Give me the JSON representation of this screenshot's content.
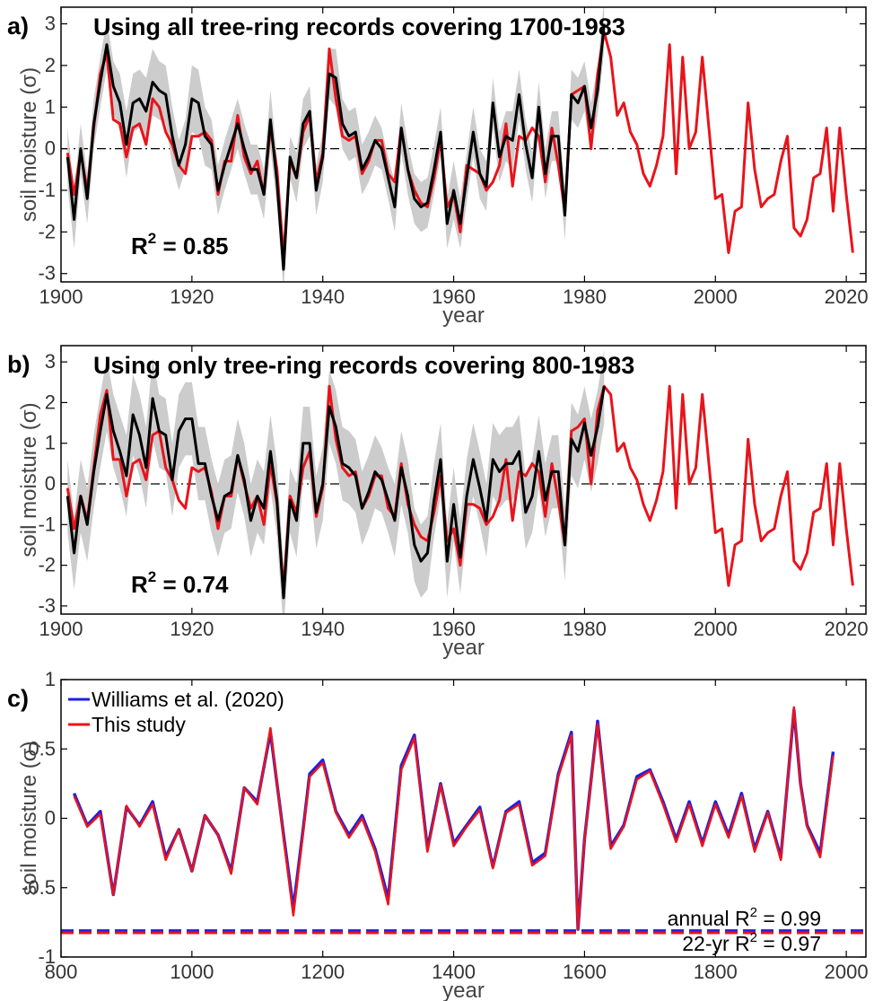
{
  "chart_data": [
    {
      "panel": "a)",
      "type": "line",
      "title": "Using all tree-ring records covering 1700-1983",
      "xlabel": "year",
      "ylabel": "soil moisture (σ)",
      "xlim": [
        1900,
        2023
      ],
      "ylim": [
        -3.2,
        3.4
      ],
      "xticks": [
        1900,
        1920,
        1940,
        1960,
        1980,
        2000,
        2020
      ],
      "yticks": [
        -3,
        -2,
        -1,
        0,
        1,
        2,
        3
      ],
      "zero_line": "dash-dot",
      "grid": false,
      "stat": {
        "label": "R",
        "sup": "2",
        "value": " = 0.85"
      },
      "observed": {
        "color": "#e8141b",
        "x_start": 1901,
        "values": [
          -0.1,
          -1.1,
          -0.1,
          -1.0,
          0.5,
          1.8,
          2.3,
          0.7,
          0.6,
          -0.2,
          0.5,
          0.6,
          0.1,
          1.2,
          1.0,
          0.4,
          0.1,
          -0.4,
          -0.6,
          0.3,
          0.3,
          0.4,
          0.2,
          -1.1,
          -0.3,
          -0.3,
          0.8,
          -0.2,
          -0.6,
          -0.3,
          -1.1,
          0.5,
          -0.5,
          -2.6,
          -0.3,
          -0.7,
          0.4,
          0.8,
          -0.8,
          -0.1,
          2.4,
          1.2,
          0.3,
          0.2,
          0.3,
          -0.6,
          -0.3,
          0.2,
          0.2,
          -0.6,
          -0.8,
          0.5,
          -0.5,
          -1.0,
          -1.3,
          -1.4,
          -0.7,
          0.2,
          -1.4,
          -1.1,
          -2.0,
          -0.4,
          -0.5,
          -0.6,
          -1.0,
          -0.8,
          -0.4,
          0.6,
          -0.9,
          0.3,
          0.2,
          0.5,
          0.3,
          -0.8,
          0.5,
          -0.4,
          -1.5,
          1.3,
          1.4,
          1.5,
          0.0,
          1.8,
          2.8,
          2.2,
          0.8,
          1.1,
          0.4,
          0.1,
          -0.6,
          -0.9,
          -0.4,
          0.3,
          2.5,
          -0.6,
          2.2,
          0.0,
          0.4,
          2.2,
          0.5,
          -1.2,
          -1.1,
          -2.5,
          -1.5,
          -1.4,
          1.1,
          -0.5,
          -1.4,
          -1.2,
          -1.1,
          -0.3,
          0.3,
          -1.9,
          -2.1,
          -1.7,
          -0.7,
          -0.6,
          0.5,
          -1.5,
          0.5,
          -1.1,
          -2.5
        ]
      },
      "reconstruction": {
        "color": "#000000",
        "x_start": 1901,
        "values": [
          -0.2,
          -1.7,
          0.0,
          -1.2,
          0.6,
          1.6,
          2.5,
          1.5,
          1.1,
          0.1,
          1.1,
          1.2,
          0.9,
          1.6,
          1.4,
          1.3,
          0.3,
          -0.4,
          0.1,
          1.2,
          1.1,
          0.3,
          0.1,
          -1.0,
          -0.4,
          0.1,
          0.6,
          0.0,
          -0.5,
          -0.5,
          -1.1,
          0.7,
          -0.8,
          -2.9,
          -0.2,
          -0.7,
          0.6,
          0.9,
          -1.0,
          -0.2,
          1.8,
          1.7,
          0.6,
          0.3,
          0.4,
          -0.5,
          -0.2,
          0.2,
          0.0,
          -0.7,
          -1.4,
          0.5,
          -0.5,
          -1.2,
          -1.4,
          -1.3,
          -0.5,
          0.4,
          -1.8,
          -1.0,
          -1.8,
          -0.7,
          0.4,
          -0.6,
          -0.9,
          1.1,
          -0.2,
          0.3,
          0.2,
          1.3,
          0.1,
          -0.7,
          1.0,
          -0.6,
          0.3,
          0.3,
          -1.6,
          1.3,
          1.1,
          1.5,
          0.5,
          1.4,
          3.0
        ],
        "band": [
          0.7,
          0.7,
          0.6,
          0.6,
          0.6,
          0.6,
          0.6,
          0.6,
          0.7,
          0.8,
          0.7,
          0.7,
          0.8,
          0.8,
          0.7,
          0.7,
          0.7,
          0.6,
          0.6,
          0.8,
          0.8,
          0.7,
          0.6,
          0.6,
          0.6,
          0.6,
          0.6,
          0.6,
          0.6,
          0.6,
          0.6,
          0.7,
          0.6,
          0.5,
          0.5,
          0.6,
          0.6,
          0.6,
          0.6,
          0.6,
          0.6,
          0.7,
          0.6,
          0.6,
          0.6,
          0.6,
          0.6,
          0.6,
          0.5,
          0.5,
          0.6,
          0.6,
          0.6,
          0.6,
          0.6,
          0.6,
          0.6,
          0.6,
          0.6,
          0.7,
          0.6,
          0.6,
          0.6,
          0.6,
          0.6,
          0.6,
          0.6,
          0.6,
          0.7,
          0.6,
          0.6,
          0.6,
          0.6,
          0.6,
          0.6,
          0.6,
          0.6,
          0.6,
          0.6,
          0.6,
          0.6,
          0.6,
          0.6
        ]
      }
    },
    {
      "panel": "b)",
      "type": "line",
      "title": "Using only tree-ring records covering 800-1983",
      "xlabel": "year",
      "ylabel": "soil moisture (σ)",
      "xlim": [
        1900,
        2023
      ],
      "ylim": [
        -3.2,
        3.4
      ],
      "xticks": [
        1900,
        1920,
        1940,
        1960,
        1980,
        2000,
        2020
      ],
      "yticks": [
        -3,
        -2,
        -1,
        0,
        1,
        2,
        3
      ],
      "zero_line": "dash-dot",
      "grid": false,
      "stat": {
        "label": "R",
        "sup": "2",
        "value": " = 0.74"
      },
      "observed": {
        "color": "#e8141b",
        "x_start": 1901,
        "values": [
          -0.1,
          -1.1,
          -0.3,
          -0.9,
          0.4,
          1.7,
          2.3,
          0.6,
          0.6,
          -0.3,
          0.5,
          0.6,
          0.1,
          1.2,
          1.3,
          0.4,
          0.1,
          -0.4,
          -0.6,
          0.4,
          0.3,
          0.4,
          -0.2,
          -1.1,
          -0.3,
          -0.3,
          0.7,
          0.0,
          -0.6,
          -0.3,
          -1.0,
          0.5,
          -0.5,
          -2.6,
          -0.3,
          -0.7,
          0.4,
          0.8,
          -0.8,
          -0.1,
          2.4,
          1.1,
          0.4,
          0.2,
          0.3,
          -0.6,
          -0.3,
          0.2,
          0.2,
          -0.6,
          -0.8,
          0.5,
          -0.5,
          -1.0,
          -1.3,
          -1.4,
          -0.7,
          0.2,
          -1.4,
          -1.1,
          -2.0,
          -0.5,
          -0.5,
          -0.6,
          -1.0,
          -0.8,
          -0.4,
          0.6,
          -0.9,
          0.3,
          0.2,
          0.5,
          0.3,
          -0.8,
          0.5,
          -0.4,
          -1.5,
          1.3,
          1.4,
          1.6,
          0.0,
          1.8,
          2.4,
          2.2,
          0.8,
          1.0,
          0.4,
          0.1,
          -0.5,
          -0.9,
          -0.4,
          0.3,
          2.4,
          -0.6,
          2.2,
          0.0,
          0.4,
          2.2,
          0.5,
          -1.2,
          -1.1,
          -2.5,
          -1.5,
          -1.4,
          1.1,
          -0.5,
          -1.4,
          -1.2,
          -1.1,
          -0.3,
          0.3,
          -1.9,
          -2.1,
          -1.7,
          -0.7,
          -0.6,
          0.5,
          -1.5,
          0.5,
          -1.1,
          -2.5
        ]
      },
      "reconstruction": {
        "color": "#000000",
        "x_start": 1901,
        "values": [
          -0.3,
          -1.7,
          -0.3,
          -1.0,
          0.3,
          1.3,
          2.2,
          1.3,
          0.8,
          0.2,
          1.7,
          1.2,
          0.4,
          2.1,
          1.3,
          1.2,
          0.1,
          1.3,
          1.6,
          1.6,
          0.5,
          0.5,
          -0.3,
          -0.9,
          -0.3,
          -0.2,
          0.7,
          0.1,
          -0.9,
          -0.3,
          -0.6,
          0.8,
          -0.4,
          -2.8,
          -0.4,
          -0.9,
          1.0,
          1.0,
          -0.7,
          0.0,
          1.9,
          1.4,
          0.5,
          0.4,
          0.2,
          -0.6,
          -0.2,
          0.3,
          0.1,
          -0.4,
          -0.9,
          0.4,
          -0.3,
          -1.5,
          -1.9,
          -1.7,
          -0.4,
          0.6,
          -1.9,
          -0.5,
          -1.8,
          -0.3,
          0.6,
          -0.1,
          -0.9,
          0.6,
          0.3,
          0.5,
          0.5,
          0.8,
          -0.7,
          -0.3,
          0.8,
          -0.4,
          0.3,
          0.3,
          -1.5,
          1.1,
          0.8,
          1.5,
          0.7,
          1.4,
          2.4
        ],
        "band": [
          0.9,
          0.9,
          0.9,
          0.9,
          0.9,
          0.9,
          0.9,
          0.9,
          0.9,
          1.0,
          1.0,
          1.0,
          1.0,
          1.0,
          0.9,
          0.9,
          0.9,
          0.9,
          0.9,
          0.9,
          0.9,
          0.9,
          0.9,
          0.9,
          0.9,
          0.9,
          0.9,
          0.9,
          0.9,
          0.9,
          0.9,
          0.9,
          0.9,
          0.8,
          0.8,
          0.9,
          0.9,
          0.9,
          0.9,
          0.9,
          0.9,
          0.9,
          0.9,
          0.9,
          0.9,
          0.9,
          0.9,
          0.9,
          0.8,
          0.8,
          0.9,
          0.9,
          0.9,
          0.9,
          0.9,
          0.9,
          0.9,
          0.9,
          0.9,
          0.9,
          0.9,
          0.9,
          0.9,
          0.9,
          0.9,
          0.9,
          0.9,
          0.9,
          0.9,
          0.9,
          0.9,
          0.9,
          0.9,
          0.9,
          0.9,
          0.9,
          0.9,
          0.9,
          0.9,
          0.9,
          0.9,
          0.9,
          0.9
        ]
      }
    },
    {
      "panel": "c)",
      "type": "line",
      "title": "",
      "xlabel": "year",
      "ylabel": "soil moisture (σ)",
      "xlim": [
        800,
        2030
      ],
      "ylim": [
        -1,
        1
      ],
      "xticks": [
        800,
        1000,
        1200,
        1400,
        1600,
        1800,
        2000
      ],
      "yticks": [
        -1,
        -0.5,
        0,
        0.5,
        1
      ],
      "grid": false,
      "legend_position": "top-left",
      "notes": [
        {
          "prefix": "annual R",
          "sup": "2",
          "suffix": " = 0.99"
        },
        {
          "prefix": "22-yr R",
          "sup": "2",
          "suffix": " = 0.97"
        }
      ],
      "x": [
        820,
        840,
        860,
        880,
        900,
        920,
        940,
        960,
        980,
        1000,
        1020,
        1040,
        1060,
        1080,
        1100,
        1120,
        1140,
        1155,
        1170,
        1180,
        1200,
        1220,
        1240,
        1260,
        1280,
        1300,
        1320,
        1340,
        1360,
        1380,
        1400,
        1420,
        1440,
        1460,
        1480,
        1500,
        1520,
        1540,
        1560,
        1580,
        1590,
        1600,
        1620,
        1640,
        1660,
        1680,
        1700,
        1720,
        1740,
        1760,
        1780,
        1800,
        1820,
        1840,
        1860,
        1880,
        1900,
        1920,
        1930,
        1940,
        1960,
        1980
      ],
      "series": [
        {
          "name": "Williams et al. (2020)",
          "color": "#1f1fe0",
          "values": [
            0.18,
            -0.05,
            0.05,
            -0.55,
            0.08,
            -0.05,
            0.12,
            -0.28,
            -0.08,
            -0.38,
            0.02,
            -0.12,
            -0.38,
            0.22,
            0.12,
            0.62,
            -0.12,
            -0.65,
            -0.08,
            0.32,
            0.42,
            0.05,
            -0.12,
            0.02,
            -0.22,
            -0.58,
            0.38,
            0.6,
            -0.22,
            0.25,
            -0.18,
            -0.05,
            0.08,
            -0.35,
            0.05,
            0.12,
            -0.32,
            -0.25,
            0.32,
            0.62,
            -0.8,
            -0.15,
            0.7,
            -0.2,
            -0.05,
            0.3,
            0.35,
            0.12,
            -0.15,
            0.12,
            -0.18,
            0.12,
            -0.12,
            0.18,
            -0.22,
            0.05,
            -0.28,
            0.78,
            0.25,
            -0.05,
            -0.25,
            0.48
          ]
        },
        {
          "name": "This study",
          "color": "#e8141b",
          "values": [
            0.16,
            -0.06,
            0.03,
            -0.55,
            0.09,
            -0.06,
            0.1,
            -0.3,
            -0.08,
            -0.38,
            0.02,
            -0.12,
            -0.4,
            0.22,
            0.1,
            0.65,
            -0.14,
            -0.7,
            -0.1,
            0.3,
            0.4,
            0.04,
            -0.14,
            0.0,
            -0.24,
            -0.62,
            0.35,
            0.58,
            -0.24,
            0.24,
            -0.2,
            -0.06,
            0.06,
            -0.36,
            0.04,
            0.1,
            -0.34,
            -0.27,
            0.3,
            0.6,
            -0.8,
            -0.16,
            0.68,
            -0.22,
            -0.06,
            0.28,
            0.34,
            0.1,
            -0.17,
            0.1,
            -0.2,
            0.1,
            -0.14,
            0.16,
            -0.24,
            0.04,
            -0.3,
            0.8,
            0.24,
            -0.06,
            -0.28,
            0.45
          ]
        }
      ],
      "hlines": [
        {
          "color": "#1f1fe0",
          "y": -0.81
        },
        {
          "color": "#e8141b",
          "y": -0.825
        }
      ]
    }
  ]
}
